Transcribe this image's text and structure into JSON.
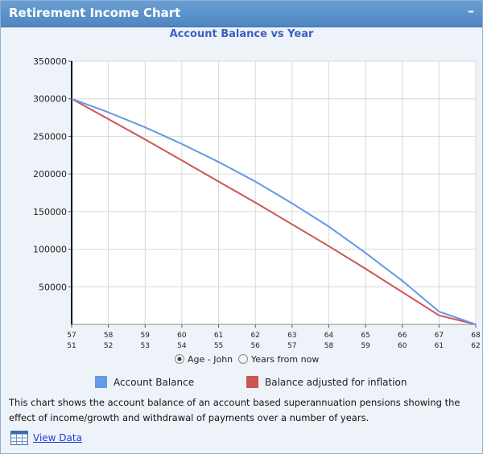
{
  "panel": {
    "title": "Retirement Income Chart",
    "collapse_glyph": "–",
    "description": "This chart shows the account balance of an account based superannuation pensions showing the effect of income/growth and withdrawal of payments over a number of years.",
    "view_data_label": "View Data",
    "icons": {
      "collapse": "minimize-icon",
      "view_data": "table-icon"
    }
  },
  "chart_data": {
    "type": "line",
    "title": "Account Balance vs Year",
    "xlabel": "",
    "ylabel": "",
    "ylim": [
      0,
      350000
    ],
    "yticks": [
      50000,
      100000,
      150000,
      200000,
      250000,
      300000,
      350000
    ],
    "grid": true,
    "x_age": [
      57,
      58,
      59,
      60,
      61,
      62,
      63,
      64,
      65,
      66,
      67,
      68
    ],
    "x_age_second": [
      51,
      52,
      53,
      54,
      55,
      56,
      57,
      58,
      59,
      60,
      61,
      62
    ],
    "series": [
      {
        "name": "Account Balance",
        "color": "#6699e6",
        "values": [
          300000,
          282000,
          262000,
          240000,
          216000,
          190000,
          161000,
          130000,
          95000,
          58000,
          17000,
          0
        ]
      },
      {
        "name": "Balance adjusted for inflation",
        "color": "#cc5555",
        "values": [
          300000,
          273000,
          246000,
          218000,
          190000,
          162000,
          133000,
          104000,
          74000,
          43000,
          12000,
          0
        ]
      }
    ],
    "axis_options": {
      "selected": "Age - John",
      "options": [
        "Age - John",
        "Years from now"
      ]
    },
    "legend_position": "bottom"
  }
}
